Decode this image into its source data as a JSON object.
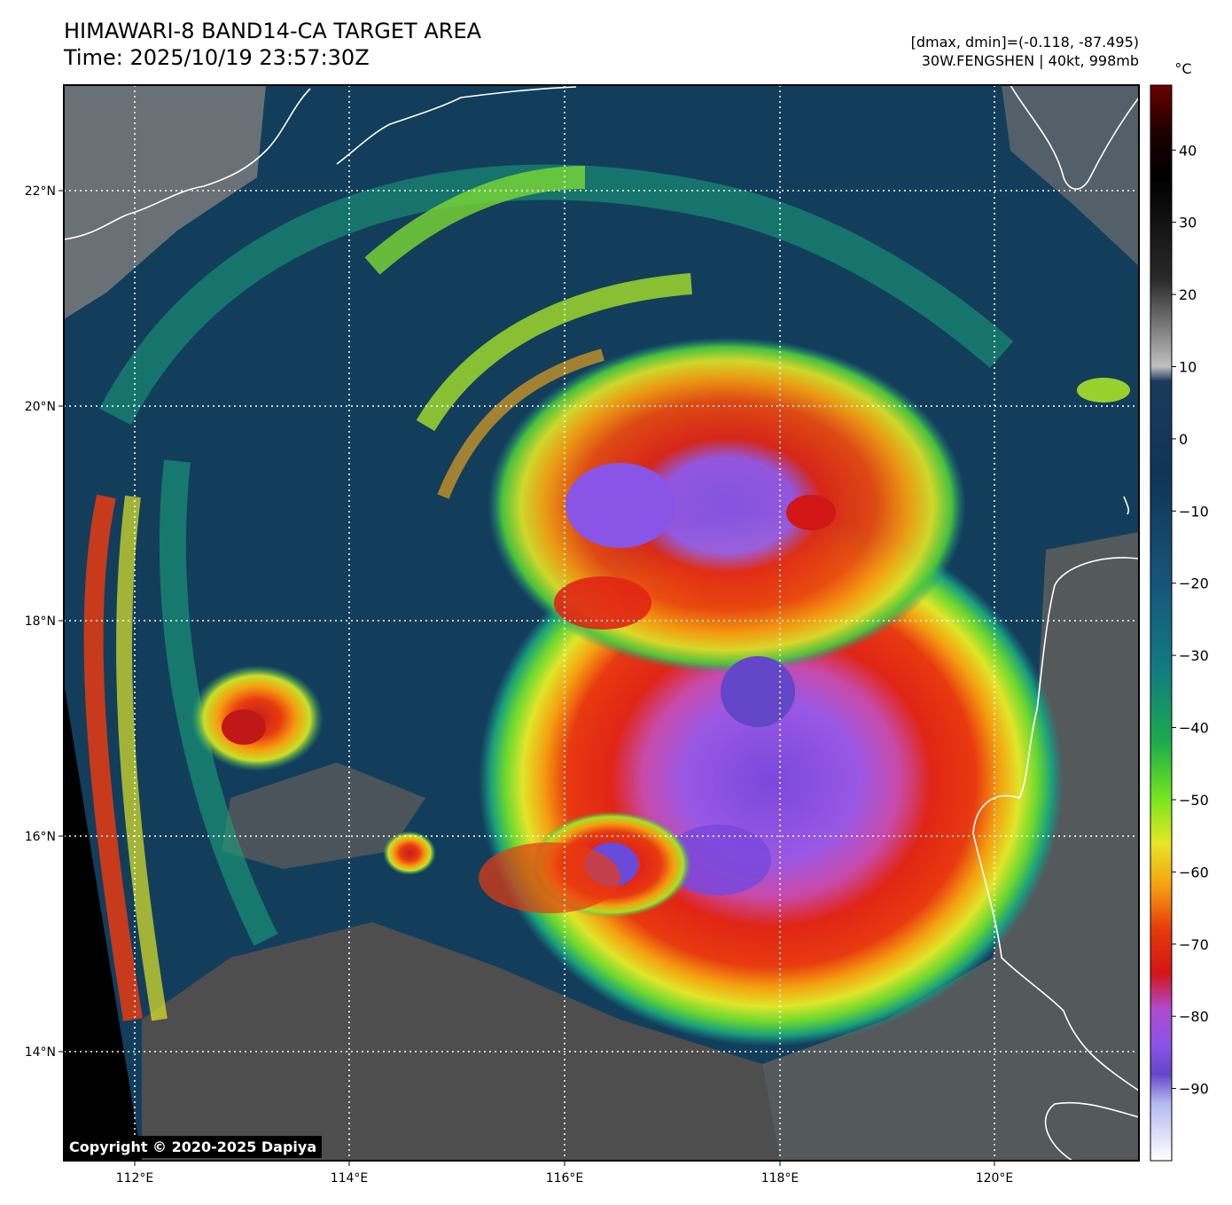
{
  "title": {
    "line1": "HIMAWARI-8 BAND14-CA TARGET AREA",
    "line2": "Time: 2025/10/19 23:57:30Z"
  },
  "meta": {
    "line1": "[dmax, dmin]=(-0.118, -87.495)",
    "line2": "30W.FENGSHEN | 40kt, 998mb"
  },
  "copyright": "Copyright © 2020-2025 Dapiya",
  "axes": {
    "lon_labels": [
      "112°E",
      "114°E",
      "116°E",
      "118°E",
      "120°E"
    ],
    "lat_labels": [
      "22°N",
      "20°N",
      "18°N",
      "16°N",
      "14°N"
    ]
  },
  "colorbar": {
    "unit": "°C",
    "ticks": [
      "40",
      "30",
      "20",
      "10",
      "0",
      "−10",
      "−20",
      "−30",
      "−40",
      "−50",
      "−60",
      "−70",
      "−80",
      "−90"
    ],
    "stops": [
      {
        "v": 49,
        "c": "#6b0000"
      },
      {
        "v": 42,
        "c": "#1a0000"
      },
      {
        "v": 36,
        "c": "#000000"
      },
      {
        "v": 22,
        "c": "#2a2a2a"
      },
      {
        "v": 10,
        "c": "#c0c0c0"
      },
      {
        "v": 8,
        "c": "#1b3a5c"
      },
      {
        "v": -5,
        "c": "#0f3556"
      },
      {
        "v": -20,
        "c": "#17557a"
      },
      {
        "v": -32,
        "c": "#117b82"
      },
      {
        "v": -42,
        "c": "#1cab4c"
      },
      {
        "v": -50,
        "c": "#78e61e"
      },
      {
        "v": -56,
        "c": "#e8e626"
      },
      {
        "v": -62,
        "c": "#f5a010"
      },
      {
        "v": -68,
        "c": "#e53a0c"
      },
      {
        "v": -74,
        "c": "#d21515"
      },
      {
        "v": -79,
        "c": "#b04ad0"
      },
      {
        "v": -84,
        "c": "#8a55e6"
      },
      {
        "v": -88,
        "c": "#6446c8"
      },
      {
        "v": -92,
        "c": "#b4b8f0"
      },
      {
        "v": -100,
        "c": "#ffffff"
      }
    ]
  },
  "colors": {
    "background_cold_sea": "#123e5c",
    "land_gray": "#8a8a8a",
    "eye_core": "#8a55e6",
    "red_band": "#e02010",
    "orange_band": "#f57a10",
    "yellow_band": "#e0e62a",
    "green_band": "#4cc83c",
    "teal_band": "#1a8a8a",
    "coastline": "#ffffff",
    "grid": "#ffffff"
  }
}
